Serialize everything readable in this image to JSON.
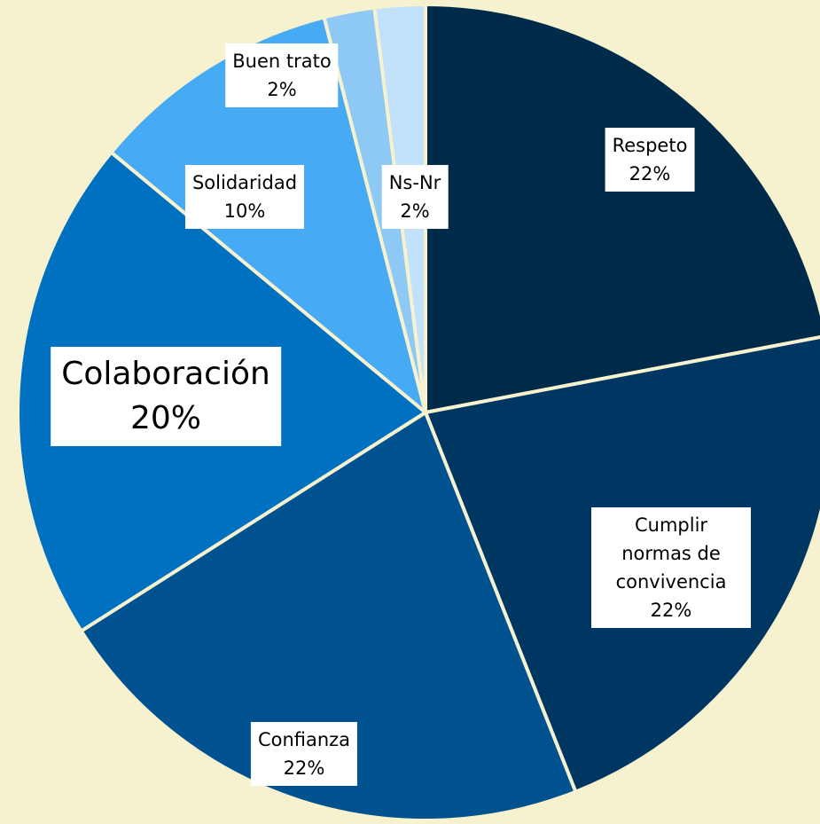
{
  "chart_data": {
    "type": "pie",
    "categories": [
      "Respeto",
      "Cumplir normas de convivencia",
      "Confianza",
      "Colaboración",
      "Solidaridad",
      "Buen trato",
      "Ns-Nr"
    ],
    "values": [
      22,
      22,
      22,
      20,
      10,
      2,
      2
    ],
    "value_labels": [
      "22%",
      "22%",
      "22%",
      "20%",
      "10%",
      "2%",
      "2%"
    ],
    "colors": [
      "#002a4a",
      "#003662",
      "#00518f",
      "#0070c0",
      "#47aaf5",
      "#8ec9f5",
      "#c2e1fa"
    ]
  }
}
